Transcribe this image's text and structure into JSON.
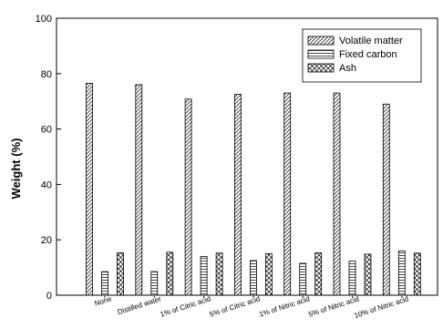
{
  "chart_data": {
    "type": "bar",
    "title": "",
    "xlabel": "",
    "ylabel": "Weight (%)",
    "ylim": [
      0,
      100
    ],
    "yticks": [
      0,
      20,
      40,
      60,
      80,
      100
    ],
    "grid": false,
    "legend_position": "top-right",
    "categories": [
      "None",
      "Distilled water",
      "1% of Citric acid",
      "5% of Citric acid",
      "1% of Nitric acid",
      "5% of Nitric acid",
      "10% of Nitric acid"
    ],
    "series": [
      {
        "name": "Volatile matter",
        "pattern": "diagonal-hatch",
        "values": [
          76.5,
          76.0,
          70.8,
          72.5,
          73.0,
          73.0,
          69.0
        ]
      },
      {
        "name": "Fixed carbon",
        "pattern": "horizontal-lines",
        "values": [
          8.5,
          8.5,
          14.0,
          12.5,
          11.5,
          12.3,
          16.0
        ]
      },
      {
        "name": "Ash",
        "pattern": "crosshatch",
        "values": [
          15.3,
          15.5,
          15.2,
          15.0,
          15.3,
          14.8,
          15.2
        ]
      }
    ]
  }
}
